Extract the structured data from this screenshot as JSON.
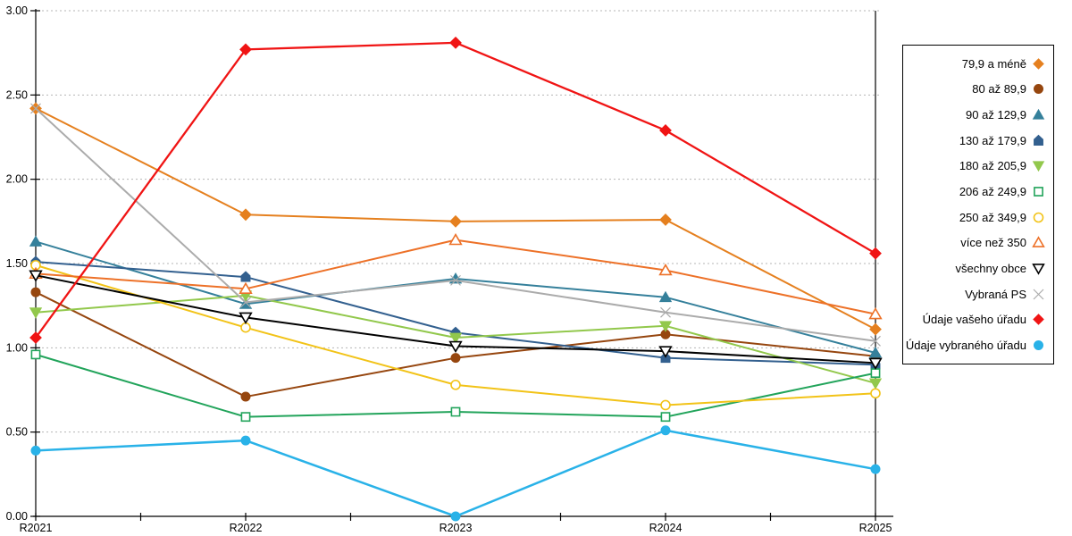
{
  "chart_data": {
    "type": "line",
    "title": "",
    "xlabel": "",
    "ylabel": "",
    "x_categories": [
      "R2021",
      "R2022",
      "R2023",
      "R2024",
      "R2025"
    ],
    "y_axis": {
      "min": 0,
      "max": 3,
      "step": 0.5,
      "tick_labels": [
        "0.00",
        "0.50",
        "1.00",
        "1.50",
        "2.00",
        "2.50",
        "3.00"
      ]
    },
    "grid": "horizontal-dashed",
    "legend_position": "right",
    "series": [
      {
        "name": "79,9 a méně",
        "color": "#E5801F",
        "marker": "diamond",
        "filled": true,
        "values": [
          2.42,
          1.79,
          1.75,
          1.76,
          1.11
        ]
      },
      {
        "name": "80 až 89,9",
        "color": "#96460F",
        "marker": "circle",
        "filled": true,
        "values": [
          1.33,
          0.71,
          0.94,
          1.08,
          0.95
        ]
      },
      {
        "name": "90 až 129,9",
        "color": "#35809B",
        "marker": "triangle-up",
        "filled": true,
        "values": [
          1.63,
          1.26,
          1.41,
          1.3,
          0.97
        ]
      },
      {
        "name": "130 až 179,9",
        "color": "#33608F",
        "marker": "pentagon",
        "filled": true,
        "values": [
          1.51,
          1.42,
          1.09,
          0.94,
          0.9
        ]
      },
      {
        "name": "180 až 205,9",
        "color": "#92C84C",
        "marker": "triangle-down",
        "filled": true,
        "values": [
          1.21,
          1.31,
          1.06,
          1.13,
          0.79
        ]
      },
      {
        "name": "206 až 249,9",
        "color": "#22A45B",
        "marker": "square",
        "filled": false,
        "values": [
          0.96,
          0.59,
          0.62,
          0.59,
          0.85
        ]
      },
      {
        "name": "250 až 349,9",
        "color": "#F2C318",
        "marker": "circle",
        "filled": false,
        "values": [
          1.49,
          1.12,
          0.78,
          0.66,
          0.73
        ]
      },
      {
        "name": "více než 350",
        "color": "#ED7128",
        "marker": "triangle-up",
        "filled": false,
        "values": [
          1.44,
          1.35,
          1.64,
          1.46,
          1.2
        ]
      },
      {
        "name": "všechny obce",
        "color": "#000000",
        "marker": "triangle-down",
        "filled": false,
        "values": [
          1.43,
          1.18,
          1.01,
          0.98,
          0.91
        ]
      },
      {
        "name": "Vybraná PS",
        "color": "#ABABAB",
        "marker": "x",
        "filled": false,
        "values": [
          2.42,
          1.27,
          1.4,
          1.21,
          1.04
        ]
      },
      {
        "name": "Údaje vašeho úřadu",
        "color": "#F01414",
        "marker": "diamond",
        "filled": true,
        "values": [
          1.06,
          2.77,
          2.81,
          2.29,
          1.56
        ]
      },
      {
        "name": "Údaje vybraného úřadu",
        "color": "#29B2E8",
        "marker": "circle",
        "filled": true,
        "values": [
          0.39,
          0.45,
          0.0,
          0.51,
          0.28
        ]
      }
    ]
  },
  "colors": {
    "axis": "#000000",
    "gridline": "#b5b5b5",
    "background": "#ffffff"
  }
}
